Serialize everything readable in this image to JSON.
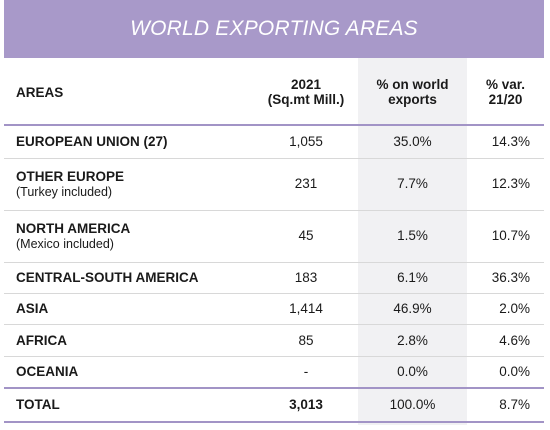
{
  "title": "WORLD EXPORTING AREAS",
  "headers": {
    "area": "AREAS",
    "volume_line1": "2021",
    "volume_line2": "(Sq.mt Mill.)",
    "share_line1": "% on world",
    "share_line2": "exports",
    "var_line1": "% var.",
    "var_line2": "21/20"
  },
  "rows": [
    {
      "area": "EUROPEAN UNION (27)",
      "sub": "",
      "volume": "1,055",
      "share": "35.0%",
      "var": "14.3%"
    },
    {
      "area": "OTHER EUROPE",
      "sub": "(Turkey included)",
      "volume": "231",
      "share": "7.7%",
      "var": "12.3%"
    },
    {
      "area": "NORTH AMERICA",
      "sub": "(Mexico included)",
      "volume": "45",
      "share": "1.5%",
      "var": "10.7%"
    },
    {
      "area": "CENTRAL-SOUTH AMERICA",
      "sub": "",
      "volume": "183",
      "share": "6.1%",
      "var": "36.3%"
    },
    {
      "area": "ASIA",
      "sub": "",
      "volume": "1,414",
      "share": "46.9%",
      "var": "2.0%"
    },
    {
      "area": "AFRICA",
      "sub": "",
      "volume": "85",
      "share": "2.8%",
      "var": "4.6%"
    },
    {
      "area": "OCEANIA",
      "sub": "",
      "volume": "-",
      "share": "0.0%",
      "var": "0.0%"
    }
  ],
  "total": {
    "area": "TOTAL",
    "volume": "3,013",
    "share": "100.0%",
    "var": "8.7%"
  },
  "colors": {
    "banner": "#a899c9",
    "rule": "#a294c6",
    "shade": "#f1f1f3"
  }
}
